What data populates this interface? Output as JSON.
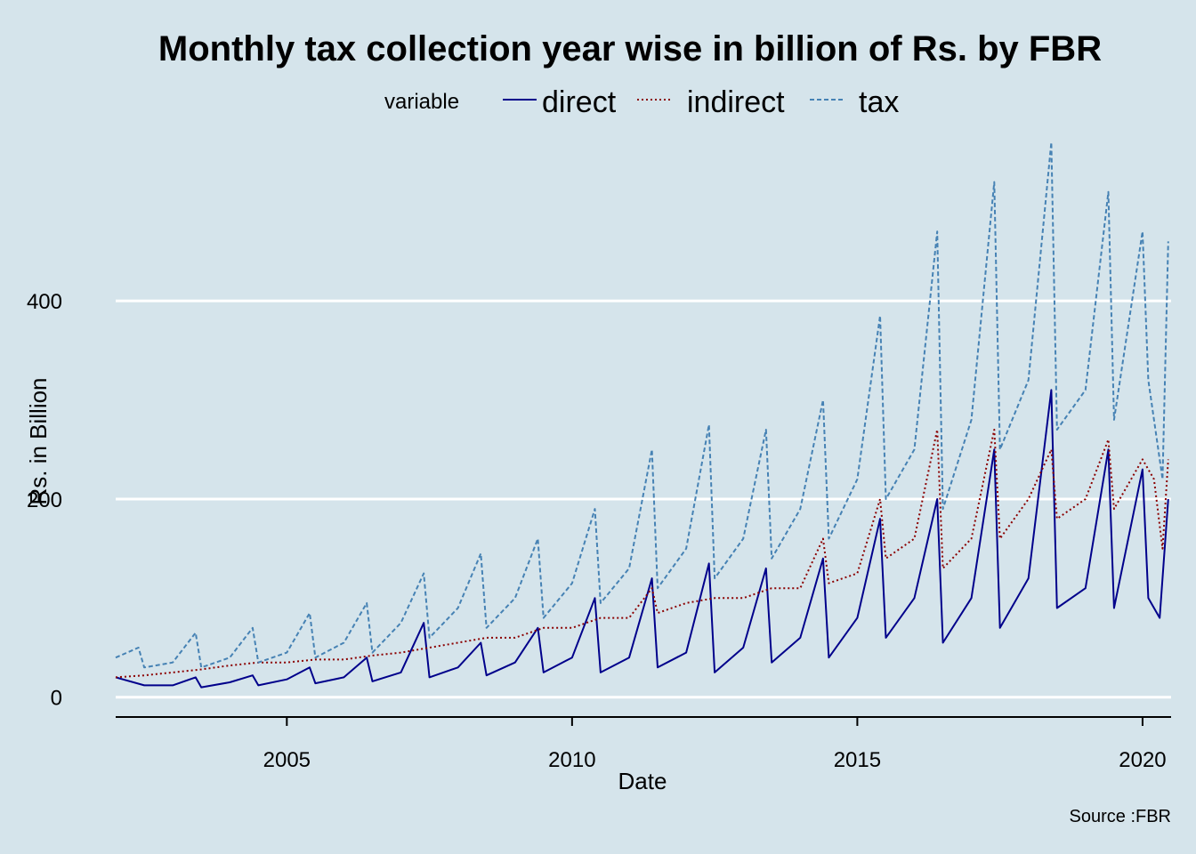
{
  "chart_data": {
    "type": "line",
    "title": "Monthly tax collection year wise in billion of Rs. by FBR",
    "xlabel": "Date",
    "ylabel": "Rs. in Billion",
    "caption": "Source :FBR",
    "xlim": [
      2002,
      2020.5
    ],
    "ylim": [
      -20,
      560
    ],
    "x_ticks": [
      2005,
      2010,
      2015,
      2020
    ],
    "y_ticks": [
      0,
      200,
      400
    ],
    "grid": "horizontal major lines",
    "legend": {
      "title": "variable",
      "position": "top",
      "entries": [
        "direct",
        "indirect",
        "tax"
      ]
    },
    "series": [
      {
        "name": "direct",
        "color": "#00008b",
        "dash": "solid",
        "values": [
          [
            2002.0,
            20
          ],
          [
            2002.5,
            12
          ],
          [
            2003.0,
            12
          ],
          [
            2003.4,
            20
          ],
          [
            2003.5,
            10
          ],
          [
            2004.0,
            15
          ],
          [
            2004.4,
            22
          ],
          [
            2004.5,
            12
          ],
          [
            2005.0,
            18
          ],
          [
            2005.4,
            30
          ],
          [
            2005.5,
            14
          ],
          [
            2006.0,
            20
          ],
          [
            2006.4,
            40
          ],
          [
            2006.5,
            16
          ],
          [
            2007.0,
            25
          ],
          [
            2007.4,
            75
          ],
          [
            2007.5,
            20
          ],
          [
            2008.0,
            30
          ],
          [
            2008.4,
            55
          ],
          [
            2008.5,
            22
          ],
          [
            2009.0,
            35
          ],
          [
            2009.4,
            70
          ],
          [
            2009.5,
            25
          ],
          [
            2010.0,
            40
          ],
          [
            2010.4,
            100
          ],
          [
            2010.5,
            25
          ],
          [
            2011.0,
            40
          ],
          [
            2011.4,
            120
          ],
          [
            2011.5,
            30
          ],
          [
            2012.0,
            45
          ],
          [
            2012.4,
            135
          ],
          [
            2012.5,
            25
          ],
          [
            2013.0,
            50
          ],
          [
            2013.4,
            130
          ],
          [
            2013.5,
            35
          ],
          [
            2014.0,
            60
          ],
          [
            2014.4,
            140
          ],
          [
            2014.5,
            40
          ],
          [
            2015.0,
            80
          ],
          [
            2015.4,
            180
          ],
          [
            2015.5,
            60
          ],
          [
            2016.0,
            100
          ],
          [
            2016.4,
            200
          ],
          [
            2016.5,
            55
          ],
          [
            2017.0,
            100
          ],
          [
            2017.4,
            250
          ],
          [
            2017.5,
            70
          ],
          [
            2018.0,
            120
          ],
          [
            2018.4,
            310
          ],
          [
            2018.5,
            90
          ],
          [
            2019.0,
            110
          ],
          [
            2019.4,
            250
          ],
          [
            2019.5,
            90
          ],
          [
            2020.0,
            230
          ],
          [
            2020.1,
            100
          ],
          [
            2020.3,
            80
          ],
          [
            2020.45,
            200
          ]
        ]
      },
      {
        "name": "indirect",
        "color": "#8b0000",
        "dash": "dotted",
        "values": [
          [
            2002.0,
            20
          ],
          [
            2002.5,
            22
          ],
          [
            2003.0,
            25
          ],
          [
            2003.5,
            28
          ],
          [
            2004.0,
            32
          ],
          [
            2004.5,
            35
          ],
          [
            2005.0,
            35
          ],
          [
            2005.5,
            38
          ],
          [
            2006.0,
            38
          ],
          [
            2006.5,
            42
          ],
          [
            2007.0,
            45
          ],
          [
            2007.5,
            50
          ],
          [
            2008.0,
            55
          ],
          [
            2008.5,
            60
          ],
          [
            2009.0,
            60
          ],
          [
            2009.5,
            70
          ],
          [
            2010.0,
            70
          ],
          [
            2010.5,
            80
          ],
          [
            2011.0,
            80
          ],
          [
            2011.4,
            110
          ],
          [
            2011.5,
            85
          ],
          [
            2012.0,
            95
          ],
          [
            2012.5,
            100
          ],
          [
            2013.0,
            100
          ],
          [
            2013.5,
            110
          ],
          [
            2014.0,
            110
          ],
          [
            2014.4,
            160
          ],
          [
            2014.5,
            115
          ],
          [
            2015.0,
            125
          ],
          [
            2015.4,
            200
          ],
          [
            2015.5,
            140
          ],
          [
            2016.0,
            160
          ],
          [
            2016.4,
            270
          ],
          [
            2016.5,
            130
          ],
          [
            2017.0,
            160
          ],
          [
            2017.4,
            270
          ],
          [
            2017.5,
            160
          ],
          [
            2018.0,
            200
          ],
          [
            2018.4,
            250
          ],
          [
            2018.5,
            180
          ],
          [
            2019.0,
            200
          ],
          [
            2019.4,
            260
          ],
          [
            2019.5,
            190
          ],
          [
            2020.0,
            240
          ],
          [
            2020.2,
            220
          ],
          [
            2020.35,
            150
          ],
          [
            2020.45,
            240
          ]
        ]
      },
      {
        "name": "tax",
        "color": "#4682b4",
        "dash": "dashed",
        "values": [
          [
            2002.0,
            40
          ],
          [
            2002.4,
            50
          ],
          [
            2002.5,
            30
          ],
          [
            2003.0,
            35
          ],
          [
            2003.4,
            65
          ],
          [
            2003.5,
            30
          ],
          [
            2004.0,
            40
          ],
          [
            2004.4,
            70
          ],
          [
            2004.5,
            35
          ],
          [
            2005.0,
            45
          ],
          [
            2005.4,
            85
          ],
          [
            2005.5,
            40
          ],
          [
            2006.0,
            55
          ],
          [
            2006.4,
            95
          ],
          [
            2006.5,
            45
          ],
          [
            2007.0,
            75
          ],
          [
            2007.4,
            125
          ],
          [
            2007.5,
            60
          ],
          [
            2008.0,
            90
          ],
          [
            2008.4,
            145
          ],
          [
            2008.5,
            70
          ],
          [
            2009.0,
            100
          ],
          [
            2009.4,
            160
          ],
          [
            2009.5,
            80
          ],
          [
            2010.0,
            115
          ],
          [
            2010.4,
            190
          ],
          [
            2010.5,
            95
          ],
          [
            2011.0,
            130
          ],
          [
            2011.4,
            250
          ],
          [
            2011.5,
            110
          ],
          [
            2012.0,
            150
          ],
          [
            2012.4,
            275
          ],
          [
            2012.5,
            120
          ],
          [
            2013.0,
            160
          ],
          [
            2013.4,
            270
          ],
          [
            2013.5,
            140
          ],
          [
            2014.0,
            190
          ],
          [
            2014.4,
            300
          ],
          [
            2014.5,
            160
          ],
          [
            2015.0,
            220
          ],
          [
            2015.4,
            385
          ],
          [
            2015.5,
            200
          ],
          [
            2016.0,
            250
          ],
          [
            2016.4,
            470
          ],
          [
            2016.5,
            190
          ],
          [
            2017.0,
            280
          ],
          [
            2017.4,
            520
          ],
          [
            2017.5,
            250
          ],
          [
            2018.0,
            320
          ],
          [
            2018.4,
            560
          ],
          [
            2018.5,
            270
          ],
          [
            2019.0,
            310
          ],
          [
            2019.4,
            510
          ],
          [
            2019.5,
            280
          ],
          [
            2020.0,
            470
          ],
          [
            2020.1,
            320
          ],
          [
            2020.35,
            220
          ],
          [
            2020.45,
            460
          ]
        ]
      }
    ]
  }
}
